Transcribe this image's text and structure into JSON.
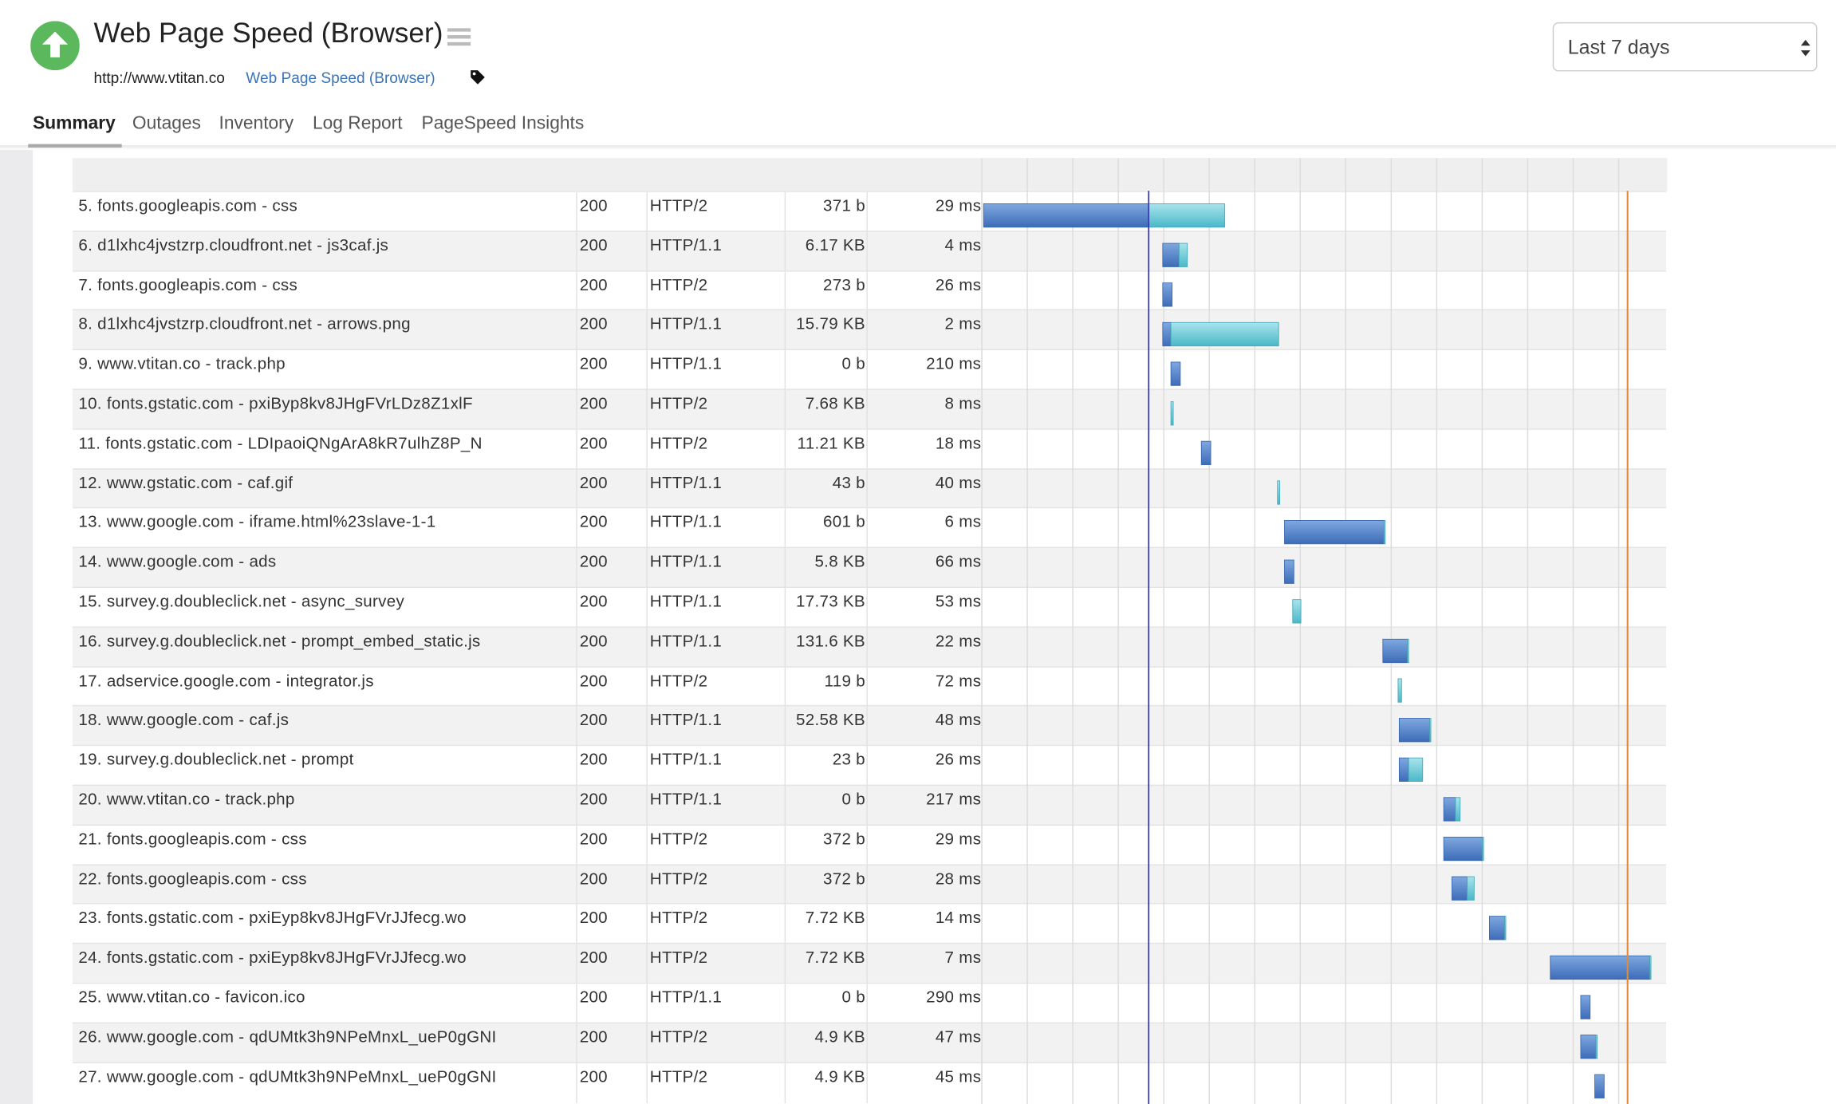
{
  "header": {
    "title": "Web Page Speed (Browser)",
    "url": "http://www.vtitan.co",
    "link": "Web Page Speed (Browser)",
    "range": "Last 7 days"
  },
  "tabs": [
    "Summary",
    "Outages",
    "Inventory",
    "Log Report",
    "PageSpeed Insights"
  ],
  "table": {
    "rows": [
      [
        "5. fonts.googleapis.com - css",
        "200",
        "HTTP/2",
        "371 b",
        "29 ms"
      ],
      [
        "6. d1lxhc4jvstzrp.cloudfront.net - js3caf.js",
        "200",
        "HTTP/1.1",
        "6.17 KB",
        "4 ms"
      ],
      [
        "7. fonts.googleapis.com - css",
        "200",
        "HTTP/2",
        "273 b",
        "26 ms"
      ],
      [
        "8. d1lxhc4jvstzrp.cloudfront.net - arrows.png",
        "200",
        "HTTP/1.1",
        "15.79 KB",
        "2 ms"
      ],
      [
        "9. www.vtitan.co - track.php",
        "200",
        "HTTP/1.1",
        "0 b",
        "210 ms"
      ],
      [
        "10. fonts.gstatic.com - pxiByp8kv8JHgFVrLDz8Z1xlF",
        "200",
        "HTTP/2",
        "7.68 KB",
        "8 ms"
      ],
      [
        "11. fonts.gstatic.com - LDIpaoiQNgArA8kR7ulhZ8P_N",
        "200",
        "HTTP/2",
        "11.21 KB",
        "18 ms"
      ],
      [
        "12. www.gstatic.com - caf.gif",
        "200",
        "HTTP/1.1",
        "43 b",
        "40 ms"
      ],
      [
        "13. www.google.com - iframe.html%23slave-1-1",
        "200",
        "HTTP/1.1",
        "601 b",
        "6 ms"
      ],
      [
        "14. www.google.com - ads",
        "200",
        "HTTP/1.1",
        "5.8 KB",
        "66 ms"
      ],
      [
        "15. survey.g.doubleclick.net - async_survey",
        "200",
        "HTTP/1.1",
        "17.73 KB",
        "53 ms"
      ],
      [
        "16. survey.g.doubleclick.net - prompt_embed_static.js",
        "200",
        "HTTP/1.1",
        "131.6 KB",
        "22 ms"
      ],
      [
        "17. adservice.google.com - integrator.js",
        "200",
        "HTTP/2",
        "119 b",
        "72 ms"
      ],
      [
        "18. www.google.com - caf.js",
        "200",
        "HTTP/1.1",
        "52.58 KB",
        "48 ms"
      ],
      [
        "19. survey.g.doubleclick.net - prompt",
        "200",
        "HTTP/1.1",
        "23 b",
        "26 ms"
      ],
      [
        "20. www.vtitan.co - track.php",
        "200",
        "HTTP/1.1",
        "0 b",
        "217 ms"
      ],
      [
        "21. fonts.googleapis.com - css",
        "200",
        "HTTP/2",
        "372 b",
        "29 ms"
      ],
      [
        "22. fonts.googleapis.com - css",
        "200",
        "HTTP/2",
        "372 b",
        "28 ms"
      ],
      [
        "23. fonts.gstatic.com - pxiEyp8kv8JHgFVrJJfecg.wo",
        "200",
        "HTTP/2",
        "7.72 KB",
        "14 ms"
      ],
      [
        "24. fonts.gstatic.com - pxiEyp8kv8JHgFVrJJfecg.wo",
        "200",
        "HTTP/2",
        "7.72 KB",
        "7 ms"
      ],
      [
        "25. www.vtitan.co - favicon.ico",
        "200",
        "HTTP/1.1",
        "0 b",
        "290 ms"
      ],
      [
        "26. www.google.com - qdUMtk3h9NPeMnxL_ueP0gGNI",
        "200",
        "HTTP/2",
        "4.9 KB",
        "47 ms"
      ],
      [
        "27. www.google.com - qdUMtk3h9NPeMnxL_ueP0gGNI",
        "200",
        "HTTP/2",
        "4.9 KB",
        "45 ms"
      ]
    ]
  }
}
